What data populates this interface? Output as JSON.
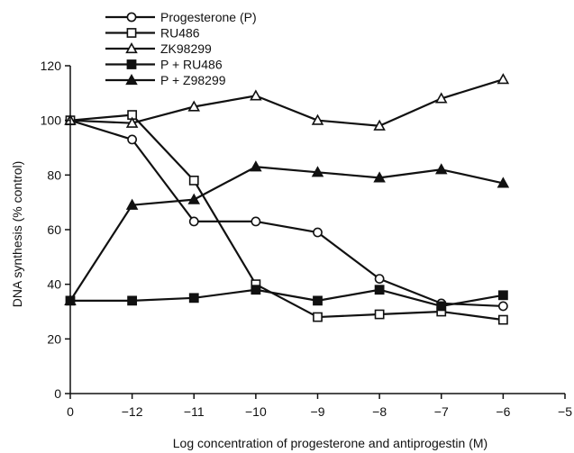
{
  "chart_data": {
    "type": "line",
    "xlabel": "Log concentration of progesterone and antiprogestin (M)",
    "ylabel": "DNA synthesis (% control)",
    "x_ticks": [
      "0",
      "−12",
      "−11",
      "−10",
      "−9",
      "−8",
      "−7",
      "−6",
      "−5"
    ],
    "x_categories": [
      0,
      1,
      2,
      3,
      4,
      5,
      6,
      7,
      8
    ],
    "ylim": [
      0,
      120
    ],
    "y_ticks": [
      0,
      20,
      40,
      60,
      80,
      100,
      120
    ],
    "grid": false,
    "legend_position": "top-left",
    "line_color": "#111111",
    "series": [
      {
        "name": "Progesterone (P)",
        "marker": "open-circle",
        "x": [
          0,
          1,
          2,
          3,
          4,
          5,
          6,
          7
        ],
        "values": [
          100,
          93,
          63,
          63,
          59,
          42,
          33,
          32
        ]
      },
      {
        "name": "RU486",
        "marker": "open-square",
        "x": [
          0,
          1,
          2,
          3,
          4,
          5,
          6,
          7
        ],
        "values": [
          100,
          102,
          78,
          40,
          28,
          29,
          30,
          27
        ]
      },
      {
        "name": "ZK98299",
        "marker": "open-triangle",
        "x": [
          0,
          1,
          2,
          3,
          4,
          5,
          6,
          7
        ],
        "values": [
          100,
          99,
          105,
          109,
          100,
          98,
          108,
          115
        ]
      },
      {
        "name": "P + RU486",
        "marker": "filled-square",
        "x": [
          0,
          1,
          2,
          3,
          4,
          5,
          6,
          7
        ],
        "values": [
          34,
          34,
          35,
          38,
          34,
          38,
          32,
          36
        ]
      },
      {
        "name": "P + Z98299",
        "marker": "filled-triangle",
        "x": [
          0,
          1,
          2,
          3,
          4,
          5,
          6,
          7
        ],
        "values": [
          34,
          69,
          71,
          83,
          81,
          79,
          82,
          77
        ]
      }
    ]
  }
}
